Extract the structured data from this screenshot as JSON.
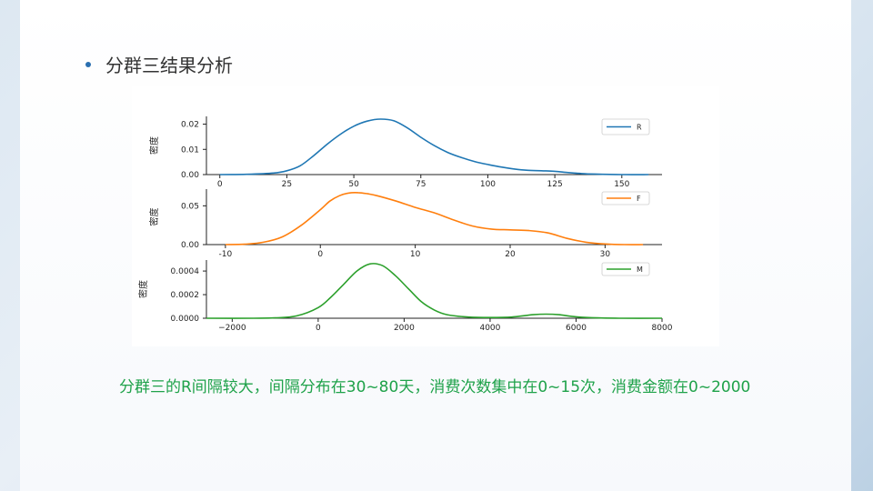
{
  "slide": {
    "title": "分群三结果分析",
    "caption": "分群三的R间隔较大，间隔分布在30~80天，消费次数集中在0~15次，消费金额在0~2000"
  },
  "colors": {
    "R": "#1f77b4",
    "F": "#ff7f0e",
    "M": "#2ca02c",
    "caption": "#1fa24a"
  },
  "chart_data": [
    {
      "type": "line",
      "ylabel": "密度",
      "legend": "R",
      "legend_position": "top-right",
      "xlim": [
        -5,
        165
      ],
      "ylim": [
        0,
        0.022
      ],
      "xticks": [
        "0",
        "25",
        "50",
        "75",
        "100",
        "125",
        "150"
      ],
      "xtick_values": [
        0,
        25,
        50,
        75,
        100,
        125,
        150
      ],
      "yticks": [
        "0.00",
        "0.01",
        "0.02"
      ],
      "ytick_values": [
        0,
        0.01,
        0.02
      ],
      "series": [
        {
          "name": "R",
          "x": [
            0,
            10,
            20,
            25,
            30,
            35,
            40,
            45,
            50,
            55,
            60,
            65,
            70,
            75,
            80,
            85,
            90,
            95,
            100,
            105,
            110,
            115,
            120,
            125,
            130,
            135,
            140,
            150,
            160
          ],
          "y": [
            0.0,
            0.0001,
            0.0006,
            0.0015,
            0.0035,
            0.0075,
            0.012,
            0.016,
            0.0192,
            0.0212,
            0.022,
            0.0213,
            0.0185,
            0.0148,
            0.0115,
            0.0088,
            0.0068,
            0.0052,
            0.004,
            0.003,
            0.0022,
            0.0017,
            0.0015,
            0.0013,
            0.0008,
            0.0004,
            0.0002,
            0.0,
            0.0
          ]
        }
      ]
    },
    {
      "type": "line",
      "ylabel": "密度",
      "legend": "F",
      "legend_position": "top-right",
      "xlim": [
        -12,
        36
      ],
      "ylim": [
        0,
        0.068
      ],
      "xticks": [
        "-10",
        "0",
        "10",
        "20",
        "30"
      ],
      "xtick_values": [
        -10,
        0,
        10,
        20,
        30
      ],
      "yticks": [
        "0.00",
        "0.05"
      ],
      "ytick_values": [
        0,
        0.05
      ],
      "series": [
        {
          "name": "F",
          "x": [
            -10,
            -8,
            -6,
            -4,
            -2,
            0,
            1,
            2,
            3,
            4,
            5,
            6,
            8,
            10,
            12,
            14,
            16,
            18,
            20,
            22,
            24,
            26,
            28,
            30,
            32,
            34
          ],
          "y": [
            0.0,
            0.0005,
            0.003,
            0.01,
            0.025,
            0.045,
            0.056,
            0.063,
            0.0665,
            0.067,
            0.0655,
            0.063,
            0.056,
            0.048,
            0.041,
            0.032,
            0.024,
            0.02,
            0.019,
            0.018,
            0.015,
            0.008,
            0.003,
            0.0008,
            0.0,
            0.0
          ]
        }
      ]
    },
    {
      "type": "line",
      "ylabel": "密度",
      "legend": "M",
      "legend_position": "top-right",
      "xlim": [
        -2600,
        8000
      ],
      "ylim": [
        0,
        0.00047
      ],
      "xticks": [
        "−2000",
        "0",
        "2000",
        "4000",
        "6000",
        "8000"
      ],
      "xtick_values": [
        -2000,
        0,
        2000,
        4000,
        6000,
        8000
      ],
      "yticks": [
        "0.0000",
        "0.0002",
        "0.0004"
      ],
      "ytick_values": [
        0,
        0.0002,
        0.0004
      ],
      "series": [
        {
          "name": "M",
          "x": [
            -2600,
            -1500,
            -1000,
            -500,
            0,
            300,
            600,
            900,
            1200,
            1500,
            1800,
            2100,
            2400,
            2700,
            3000,
            3500,
            4000,
            4500,
            5000,
            5300,
            5600,
            6000,
            6500,
            7000,
            8000
          ],
          "y": [
            0.0,
            0.0,
            3e-06,
            2e-05,
            9e-05,
            0.00018,
            0.00029,
            0.0004,
            0.00046,
            0.000445,
            0.00036,
            0.00025,
            0.00014,
            7e-05,
            3e-05,
            1e-05,
            6e-06,
            1e-05,
            3e-05,
            3.5e-05,
            3e-05,
            1.2e-05,
            3e-06,
            0.0,
            0.0
          ]
        }
      ]
    }
  ]
}
